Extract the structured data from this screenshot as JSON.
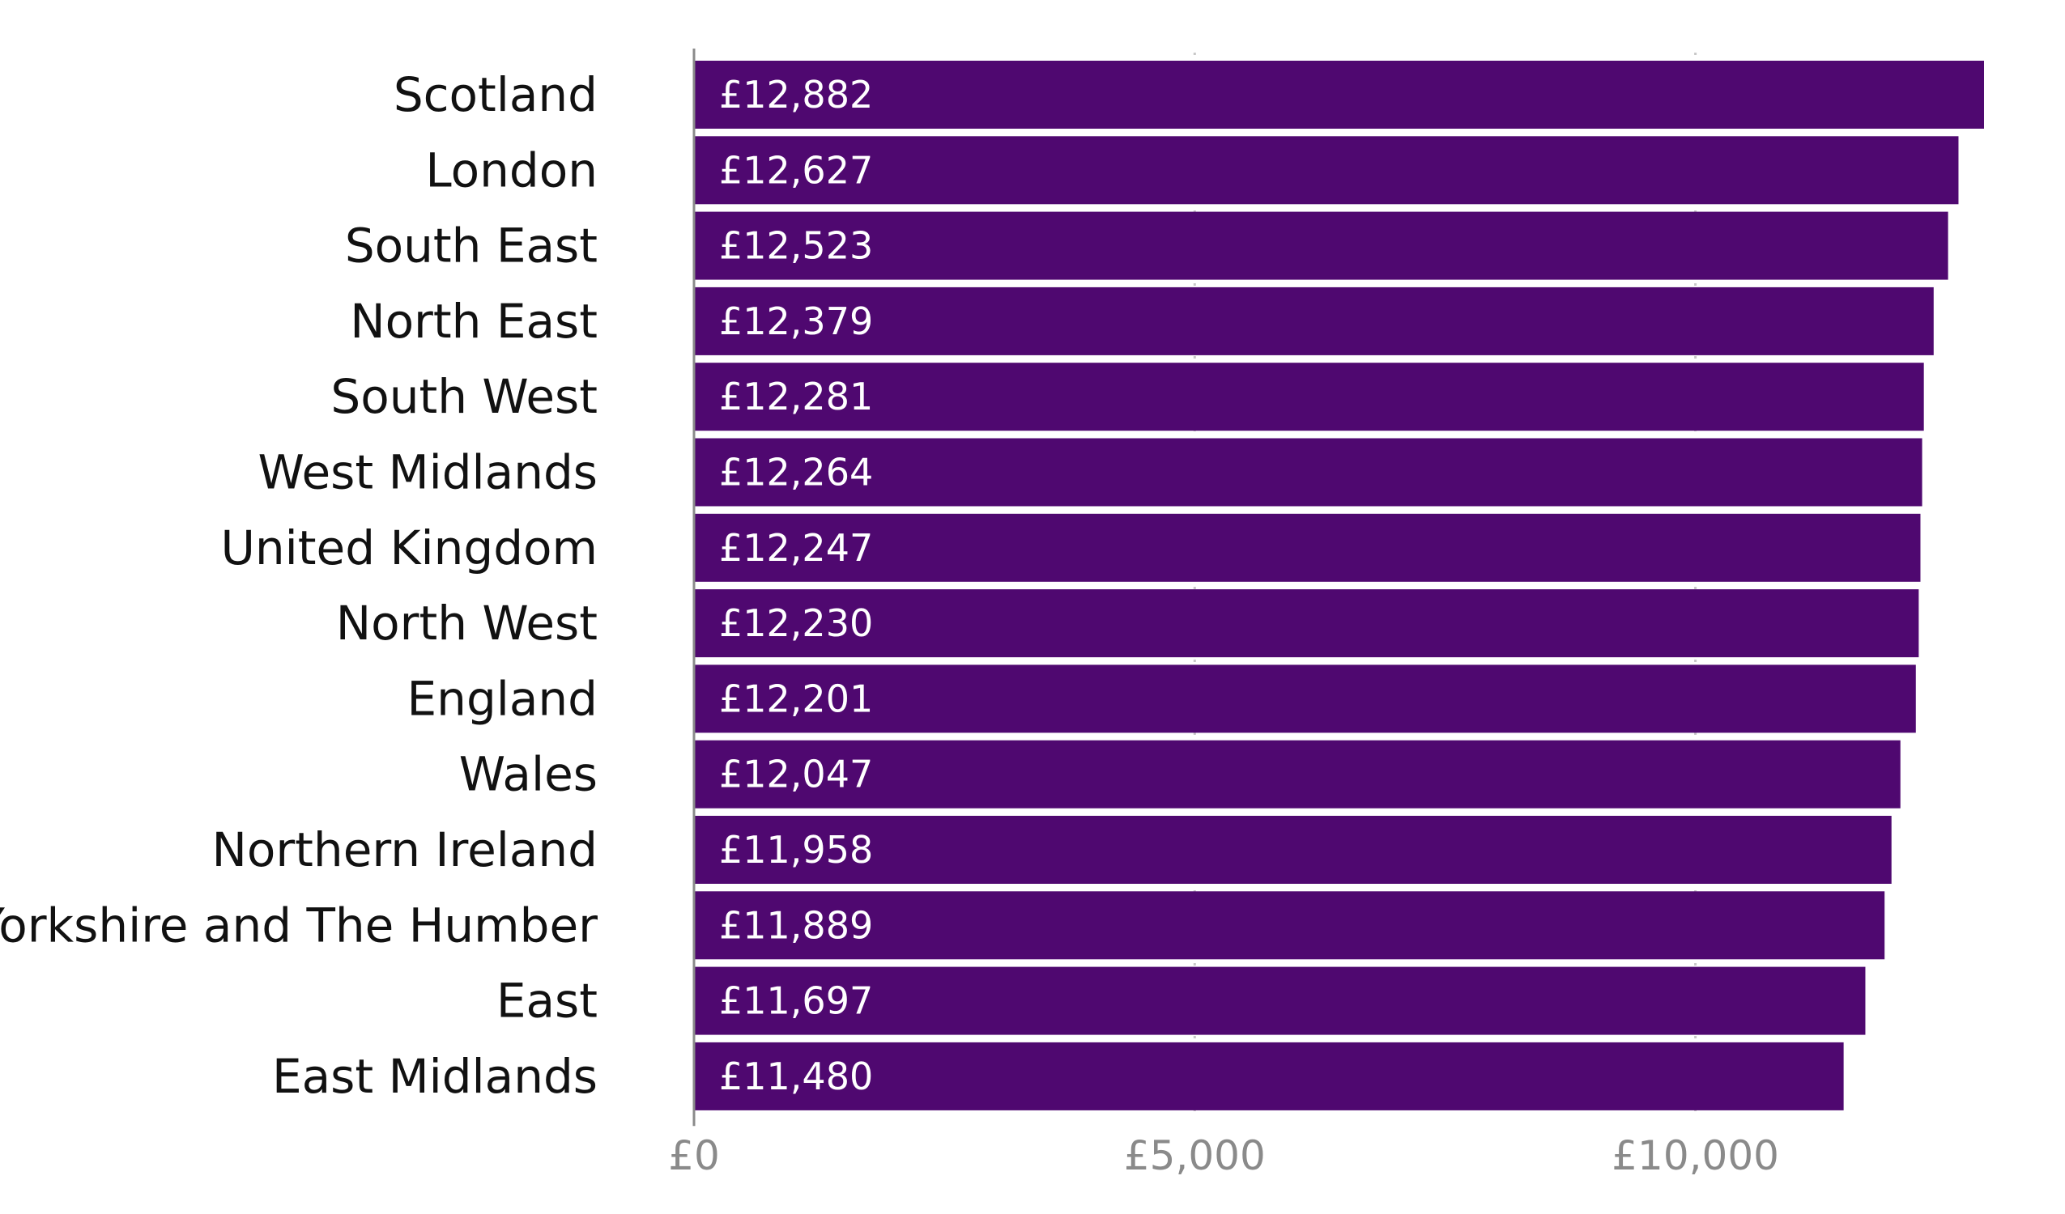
{
  "chart_data": {
    "type": "bar",
    "orientation": "horizontal",
    "categories": [
      "Scotland",
      "London",
      "South East",
      "North East",
      "South West",
      "West Midlands",
      "United Kingdom",
      "North West",
      "England",
      "Wales",
      "Northern Ireland",
      "Yorkshire and The Humber",
      "East",
      "East Midlands"
    ],
    "values": [
      12882,
      12627,
      12523,
      12379,
      12281,
      12264,
      12247,
      12230,
      12201,
      12047,
      11958,
      11889,
      11697,
      11480
    ],
    "value_labels": [
      "£12,882",
      "£12,627",
      "£12,523",
      "£12,379",
      "£12,281",
      "£12,264",
      "£12,247",
      "£12,230",
      "£12,201",
      "£12,047",
      "£11,958",
      "£11,889",
      "£11,697",
      "£11,480"
    ],
    "xticks": [
      0,
      5000,
      10000
    ],
    "xtick_labels": [
      "£0",
      "£5,000",
      "£10,000"
    ],
    "xlim": [
      0,
      12882
    ],
    "grid": true,
    "bar_color": "#4f0870",
    "title": "",
    "xlabel": "",
    "ylabel": ""
  }
}
